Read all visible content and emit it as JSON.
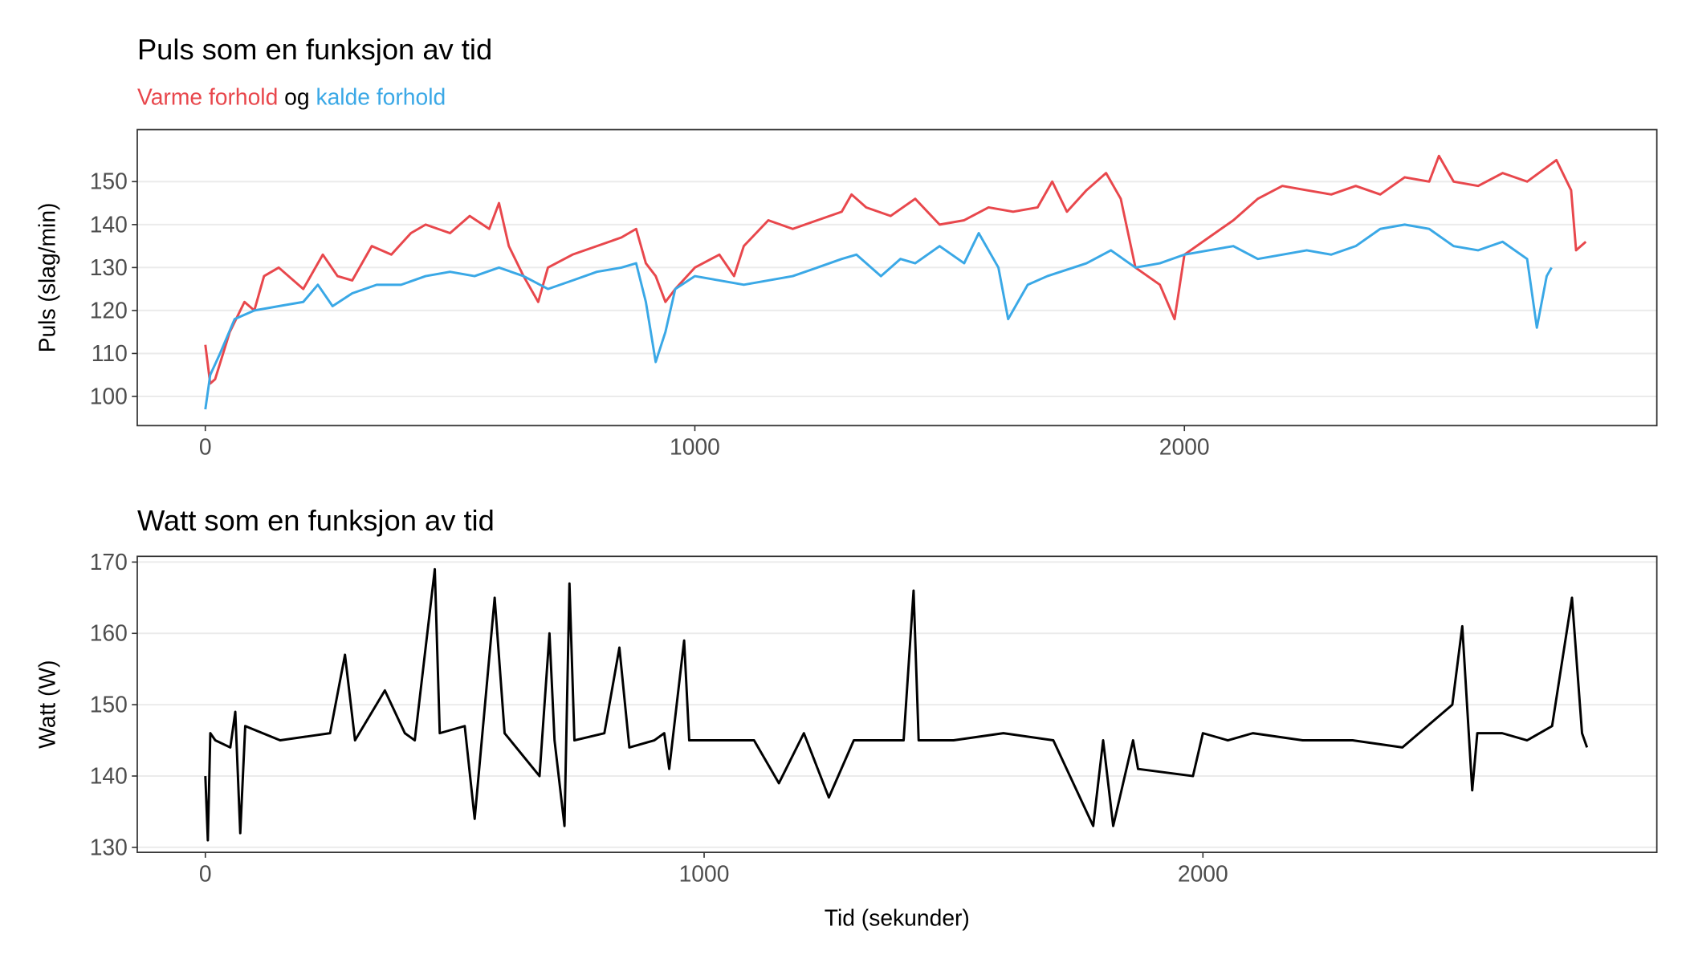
{
  "chart_data": [
    {
      "type": "line",
      "title": "Puls som en funksjon av tid",
      "subtitle_joiner": "og",
      "y_label": "Puls (slag/min)",
      "xlim": [
        -139,
        2965
      ],
      "xticks": [
        0,
        1000,
        2000
      ],
      "ylim": [
        93.2,
        162.1
      ],
      "yticks": [
        100,
        110,
        120,
        130,
        140,
        150
      ],
      "grid": true,
      "series": [
        {
          "name": "Varme forhold",
          "color": "#e8474c",
          "x": [
            0,
            10,
            20,
            50,
            80,
            100,
            120,
            150,
            200,
            240,
            270,
            300,
            340,
            380,
            420,
            450,
            500,
            540,
            580,
            600,
            620,
            650,
            680,
            700,
            750,
            800,
            850,
            880,
            900,
            920,
            940,
            960,
            1000,
            1050,
            1080,
            1100,
            1150,
            1200,
            1250,
            1300,
            1320,
            1350,
            1400,
            1450,
            1500,
            1550,
            1600,
            1650,
            1700,
            1730,
            1760,
            1800,
            1840,
            1870,
            1900,
            1950,
            1980,
            2000,
            2050,
            2100,
            2150,
            2200,
            2250,
            2300,
            2350,
            2400,
            2450,
            2500,
            2520,
            2550,
            2600,
            2650,
            2700,
            2760,
            2790,
            2800,
            2820
          ],
          "values": [
            112,
            103,
            104,
            115,
            122,
            120,
            128,
            130,
            125,
            133,
            128,
            127,
            135,
            133,
            138,
            140,
            138,
            142,
            139,
            145,
            135,
            128,
            122,
            130,
            133,
            135,
            137,
            139,
            131,
            128,
            122,
            125,
            130,
            133,
            128,
            135,
            141,
            139,
            141,
            143,
            147,
            144,
            142,
            146,
            140,
            141,
            144,
            143,
            144,
            150,
            143,
            148,
            152,
            146,
            130,
            126,
            118,
            133,
            137,
            141,
            146,
            149,
            148,
            147,
            149,
            147,
            151,
            150,
            156,
            150,
            149,
            152,
            150,
            155,
            148,
            134,
            136
          ]
        },
        {
          "name": "kalde forhold",
          "color": "#3aa8e6",
          "x": [
            0,
            10,
            30,
            60,
            100,
            150,
            200,
            230,
            260,
            300,
            350,
            400,
            450,
            500,
            550,
            600,
            650,
            700,
            750,
            800,
            850,
            880,
            900,
            920,
            940,
            960,
            1000,
            1050,
            1100,
            1150,
            1200,
            1250,
            1300,
            1330,
            1380,
            1420,
            1450,
            1500,
            1550,
            1580,
            1620,
            1640,
            1680,
            1720,
            1800,
            1850,
            1900,
            1950,
            2000,
            2050,
            2100,
            2150,
            2200,
            2250,
            2300,
            2350,
            2400,
            2450,
            2500,
            2550,
            2600,
            2650,
            2700,
            2720,
            2740,
            2750
          ],
          "values": [
            97,
            105,
            110,
            118,
            120,
            121,
            122,
            126,
            121,
            124,
            126,
            126,
            128,
            129,
            128,
            130,
            128,
            125,
            127,
            129,
            130,
            131,
            122,
            108,
            115,
            125,
            128,
            127,
            126,
            127,
            128,
            130,
            132,
            133,
            128,
            132,
            131,
            135,
            131,
            138,
            130,
            118,
            126,
            128,
            131,
            134,
            130,
            131,
            133,
            134,
            135,
            132,
            133,
            134,
            133,
            135,
            139,
            140,
            139,
            135,
            134,
            136,
            132,
            116,
            128,
            130
          ]
        }
      ]
    },
    {
      "type": "line",
      "title": "Watt som en funksjon av tid",
      "x_label": "Tid (sekunder)",
      "y_label": "Watt (W)",
      "xlim": [
        -136.5,
        2910
      ],
      "xticks": [
        0,
        1000,
        2000
      ],
      "ylim": [
        129.3,
        170.8
      ],
      "yticks": [
        130,
        140,
        150,
        160,
        170
      ],
      "grid": true,
      "series": [
        {
          "name": null,
          "color": "#000000",
          "x": [
            0,
            5,
            10,
            20,
            50,
            60,
            70,
            80,
            150,
            250,
            280,
            300,
            360,
            400,
            420,
            460,
            470,
            520,
            540,
            580,
            600,
            670,
            690,
            700,
            720,
            730,
            740,
            800,
            830,
            850,
            900,
            920,
            930,
            960,
            970,
            1000,
            1100,
            1150,
            1200,
            1250,
            1300,
            1400,
            1420,
            1430,
            1500,
            1600,
            1700,
            1780,
            1800,
            1820,
            1860,
            1870,
            1980,
            2000,
            2050,
            2100,
            2200,
            2300,
            2400,
            2450,
            2500,
            2520,
            2540,
            2550,
            2600,
            2650,
            2700,
            2740,
            2760,
            2770
          ],
          "values": [
            140,
            131,
            146,
            145,
            144,
            149,
            132,
            147,
            145,
            146,
            157,
            145,
            152,
            146,
            145,
            169,
            146,
            147,
            134,
            165,
            146,
            140,
            160,
            145,
            133,
            167,
            145,
            146,
            158,
            144,
            145,
            146,
            141,
            159,
            145,
            145,
            145,
            139,
            146,
            137,
            145,
            145,
            166,
            145,
            145,
            146,
            145,
            133,
            145,
            133,
            145,
            141,
            140,
            146,
            145,
            146,
            145,
            145,
            144,
            147,
            150,
            161,
            138,
            146,
            146,
            145,
            147,
            165,
            146,
            144
          ]
        }
      ]
    }
  ]
}
